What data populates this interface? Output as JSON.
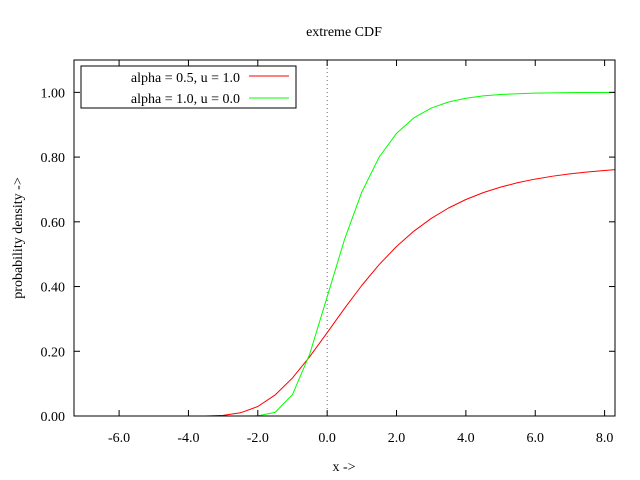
{
  "chart_data": {
    "type": "line",
    "title": "extreme CDF",
    "xlabel": "x ->",
    "ylabel": "probability density ->",
    "xlim": [
      -7.3,
      8.3
    ],
    "ylim": [
      0.0,
      1.1
    ],
    "x_ticks": [
      -6.0,
      -4.0,
      -2.0,
      0.0,
      2.0,
      4.0,
      6.0,
      8.0
    ],
    "x_tick_labels": [
      "-6.0",
      "-4.0",
      "-2.0",
      "0.0",
      "2.0",
      "4.0",
      "6.0",
      "8.0"
    ],
    "y_ticks": [
      0.0,
      0.2,
      0.4,
      0.6,
      0.8,
      1.0
    ],
    "y_tick_labels": [
      "0.00",
      "0.20",
      "0.40",
      "0.60",
      "0.80",
      "1.00"
    ],
    "grid": false,
    "vertical_reference_line_x": 0.0,
    "legend_position": "top-left",
    "series": [
      {
        "name": "alpha = 0.5, u = 1.0",
        "color": "#ff0000",
        "x": [
          -7.3,
          -4.0,
          -3.5,
          -3.0,
          -2.5,
          -2.0,
          -1.5,
          -1.0,
          -0.5,
          0.0,
          0.5,
          1.0,
          1.5,
          2.0,
          2.5,
          3.0,
          3.5,
          4.0,
          4.5,
          5.0,
          5.5,
          6.0,
          6.5,
          7.0,
          7.5,
          8.0,
          8.3
        ],
        "y": [
          0.0,
          0.0,
          0.0002,
          0.0021,
          0.0099,
          0.0293,
          0.065,
          0.1176,
          0.1836,
          0.2573,
          0.3323,
          0.4036,
          0.4679,
          0.5237,
          0.5711,
          0.6104,
          0.6427,
          0.669,
          0.6902,
          0.7072,
          0.721,
          0.7321,
          0.741,
          0.7482,
          0.754,
          0.7587,
          0.7611
        ]
      },
      {
        "name": "alpha = 1.0, u = 0.0",
        "color": "#00ff00",
        "x": [
          -7.3,
          -3.0,
          -2.5,
          -2.0,
          -1.5,
          -1.0,
          -0.5,
          0.0,
          0.5,
          1.0,
          1.5,
          2.0,
          2.5,
          3.0,
          3.5,
          4.0,
          4.5,
          5.0,
          5.5,
          6.0,
          6.5,
          7.0,
          7.5,
          8.0,
          8.3
        ],
        "y": [
          0.0,
          0.0,
          0.0,
          0.0006,
          0.0113,
          0.066,
          0.1923,
          0.3679,
          0.5452,
          0.6922,
          0.8001,
          0.8734,
          0.9212,
          0.9514,
          0.9703,
          0.9819,
          0.989,
          0.9933,
          0.9959,
          0.9975,
          0.9985,
          0.9991,
          0.9994,
          0.9997,
          0.9998
        ]
      }
    ]
  }
}
